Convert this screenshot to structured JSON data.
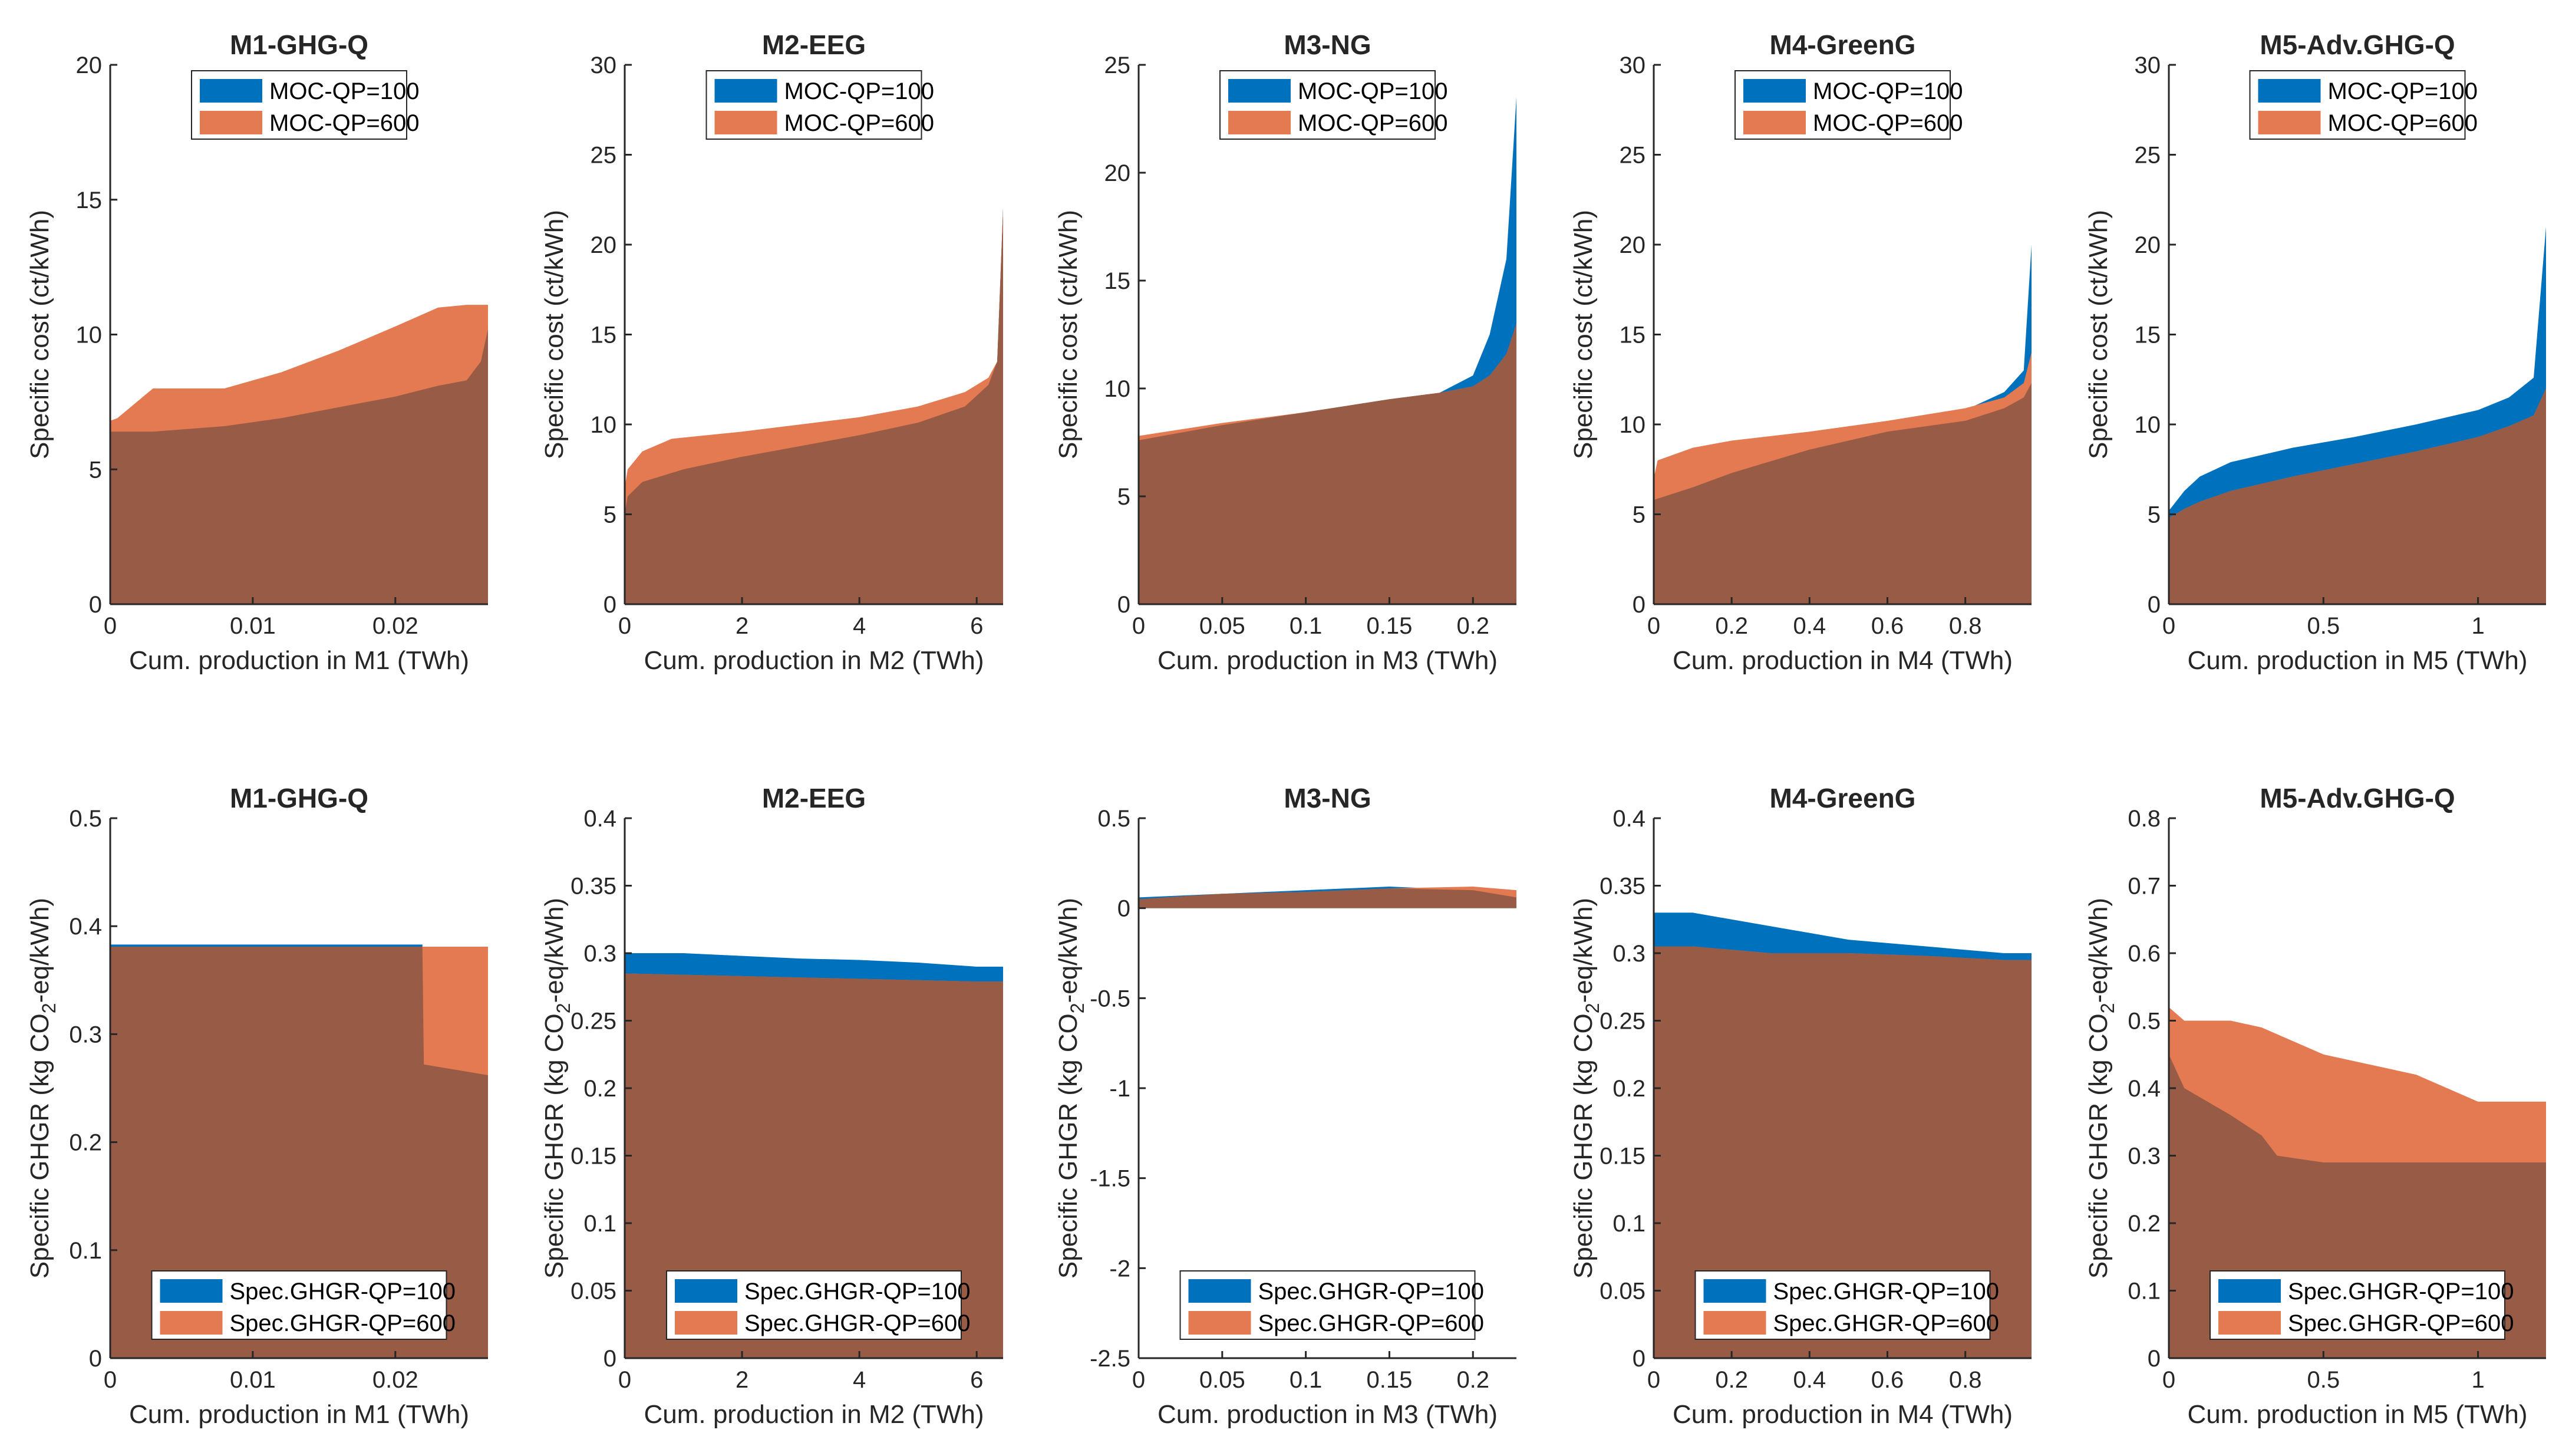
{
  "colors": {
    "blue": "#0072BD",
    "orange": "#E47A52",
    "overlap": "#985B45",
    "axis": "#262626"
  },
  "chart_data": [
    {
      "type": "area",
      "row": "cost",
      "title": "M1-GHG-Q",
      "xlabel": "Cum. production in M1 (TWh)",
      "ylabel": "Specific cost (ct/kWh)",
      "xlim": [
        0,
        0.0265
      ],
      "ylim": [
        0,
        20
      ],
      "xticks": [
        0,
        0.01,
        0.02
      ],
      "xticklabels": [
        "0",
        "0.01",
        "0.02"
      ],
      "yticks": [
        0,
        5,
        10,
        15,
        20
      ],
      "yticklabels": [
        "0",
        "5",
        "10",
        "15",
        "20"
      ],
      "legend": {
        "position": "top",
        "entries": [
          "MOC-QP=100",
          "MOC-QP=600"
        ]
      },
      "series": [
        {
          "name": "MOC-QP=100",
          "x": [
            0,
            0.0005,
            0.003,
            0.008,
            0.012,
            0.016,
            0.02,
            0.023,
            0.025,
            0.026,
            0.0265
          ],
          "y": [
            6.4,
            6.4,
            6.4,
            6.6,
            6.9,
            7.3,
            7.7,
            8.1,
            8.3,
            9,
            10.2
          ]
        },
        {
          "name": "MOC-QP=600",
          "x": [
            0,
            0.0005,
            0.003,
            0.008,
            0.012,
            0.016,
            0.02,
            0.023,
            0.025,
            0.026,
            0.0265
          ],
          "y": [
            6.8,
            6.9,
            8,
            8,
            8.6,
            9.4,
            10.3,
            11,
            11.1,
            11.1,
            11.1
          ]
        }
      ]
    },
    {
      "type": "area",
      "row": "cost",
      "title": "M2-EEG",
      "xlabel": "Cum. production in M2 (TWh)",
      "ylabel": "Specific cost (ct/kWh)",
      "xlim": [
        0,
        6.45
      ],
      "ylim": [
        0,
        30
      ],
      "xticks": [
        0,
        2,
        4,
        6
      ],
      "xticklabels": [
        "0",
        "2",
        "4",
        "6"
      ],
      "yticks": [
        0,
        5,
        10,
        15,
        20,
        25,
        30
      ],
      "yticklabels": [
        "0",
        "5",
        "10",
        "15",
        "20",
        "25",
        "30"
      ],
      "legend": {
        "position": "top",
        "entries": [
          "MOC-QP=100",
          "MOC-QP=600"
        ]
      },
      "series": [
        {
          "name": "MOC-QP=100",
          "x": [
            0,
            0.05,
            0.3,
            1,
            2,
            3,
            4,
            5,
            5.8,
            6.2,
            6.35,
            6.45
          ],
          "y": [
            5,
            6,
            6.8,
            7.5,
            8.2,
            8.8,
            9.4,
            10.1,
            11,
            12.2,
            13.5,
            22
          ]
        },
        {
          "name": "MOC-QP=600",
          "x": [
            0,
            0.05,
            0.3,
            0.8,
            2,
            3,
            4,
            5,
            5.8,
            6.2,
            6.35,
            6.45
          ],
          "y": [
            6.5,
            7.5,
            8.5,
            9.2,
            9.6,
            10,
            10.4,
            11,
            11.8,
            12.6,
            13.5,
            22
          ]
        }
      ]
    },
    {
      "type": "area",
      "row": "cost",
      "title": "M3-NG",
      "xlabel": "Cum. production in M3 (TWh)",
      "ylabel": "Specific cost (ct/kWh)",
      "xlim": [
        0,
        0.226
      ],
      "ylim": [
        0,
        25
      ],
      "xticks": [
        0,
        0.05,
        0.1,
        0.15,
        0.2
      ],
      "xticklabels": [
        "0",
        "0.05",
        "0.1",
        "0.15",
        "0.2"
      ],
      "yticks": [
        0,
        5,
        10,
        15,
        20,
        25
      ],
      "yticklabels": [
        "0",
        "5",
        "10",
        "15",
        "20",
        "25"
      ],
      "legend": {
        "position": "top",
        "entries": [
          "MOC-QP=100",
          "MOC-QP=600"
        ]
      },
      "series": [
        {
          "name": "MOC-QP=100",
          "x": [
            0,
            0.05,
            0.1,
            0.15,
            0.18,
            0.2,
            0.21,
            0.22,
            0.226
          ],
          "y": [
            7.6,
            8.3,
            8.9,
            9.5,
            9.8,
            10.6,
            12.5,
            16,
            23.5
          ]
        },
        {
          "name": "MOC-QP=600",
          "x": [
            0,
            0.05,
            0.1,
            0.15,
            0.18,
            0.2,
            0.21,
            0.22,
            0.226
          ],
          "y": [
            7.8,
            8.4,
            8.9,
            9.5,
            9.8,
            10.1,
            10.6,
            11.6,
            13
          ]
        }
      ]
    },
    {
      "type": "area",
      "row": "cost",
      "title": "M4-GreenG",
      "xlabel": "Cum. production in M4 (TWh)",
      "ylabel": "Specific cost (ct/kWh)",
      "xlim": [
        0,
        0.97
      ],
      "ylim": [
        0,
        30
      ],
      "xticks": [
        0,
        0.2,
        0.4,
        0.6,
        0.8
      ],
      "xticklabels": [
        "0",
        "0.2",
        "0.4",
        "0.6",
        "0.8"
      ],
      "yticks": [
        0,
        5,
        10,
        15,
        20,
        25,
        30
      ],
      "yticklabels": [
        "0",
        "5",
        "10",
        "15",
        "20",
        "25",
        "30"
      ],
      "legend": {
        "position": "top",
        "entries": [
          "MOC-QP=100",
          "MOC-QP=600"
        ]
      },
      "series": [
        {
          "name": "MOC-QP=100",
          "x": [
            0,
            0.1,
            0.2,
            0.4,
            0.6,
            0.8,
            0.9,
            0.95,
            0.97
          ],
          "y": [
            5.8,
            6.5,
            7.3,
            8.6,
            9.7,
            10.8,
            11.8,
            13,
            20
          ]
        },
        {
          "name": "MOC-QP=600",
          "x": [
            0,
            0.01,
            0.1,
            0.2,
            0.4,
            0.6,
            0.8,
            0.9,
            0.95,
            0.97
          ],
          "y": [
            7,
            8,
            8.7,
            9.1,
            9.6,
            10.2,
            10.9,
            11.5,
            12.3,
            14
          ]
        }
      ]
    },
    {
      "type": "area",
      "row": "cost",
      "title": "M5-Adv.GHG-Q",
      "xlabel": "Cum. production in M5 (TWh)",
      "ylabel": "Specific cost (ct/kWh)",
      "xlim": [
        0,
        1.22
      ],
      "ylim": [
        0,
        30
      ],
      "xticks": [
        0,
        0.5,
        1
      ],
      "xticklabels": [
        "0",
        "0.5",
        "1"
      ],
      "yticks": [
        0,
        5,
        10,
        15,
        20,
        25,
        30
      ],
      "yticklabels": [
        "0",
        "5",
        "10",
        "15",
        "20",
        "25",
        "30"
      ],
      "legend": {
        "position": "top",
        "entries": [
          "MOC-QP=100",
          "MOC-QP=600"
        ]
      },
      "series": [
        {
          "name": "MOC-QP=100",
          "x": [
            0,
            0.05,
            0.1,
            0.2,
            0.4,
            0.6,
            0.8,
            1,
            1.1,
            1.18,
            1.22
          ],
          "y": [
            5.2,
            6.3,
            7.1,
            7.9,
            8.7,
            9.3,
            10,
            10.8,
            11.5,
            12.6,
            21
          ]
        },
        {
          "name": "MOC-QP=600",
          "x": [
            0,
            0.05,
            0.1,
            0.2,
            0.4,
            0.6,
            0.8,
            1,
            1.1,
            1.18,
            1.22
          ],
          "y": [
            4.8,
            5.3,
            5.7,
            6.3,
            7.1,
            7.8,
            8.5,
            9.3,
            9.9,
            10.5,
            12
          ]
        }
      ]
    },
    {
      "type": "area",
      "row": "ghg",
      "title": "M1-GHG-Q",
      "xlabel": "Cum. production in M1 (TWh)",
      "ylabel": "Specific GHGR (kg CO2-eq/kWh)",
      "xlim": [
        0,
        0.0265
      ],
      "ylim": [
        0,
        0.5
      ],
      "xticks": [
        0,
        0.01,
        0.02
      ],
      "xticklabels": [
        "0",
        "0.01",
        "0.02"
      ],
      "yticks": [
        0,
        0.1,
        0.2,
        0.3,
        0.4,
        0.5
      ],
      "yticklabels": [
        "0",
        "0.1",
        "0.2",
        "0.3",
        "0.4",
        "0.5"
      ],
      "legend": {
        "position": "bottom",
        "entries": [
          "Spec.GHGR-QP=100",
          "Spec.GHGR-QP=600"
        ]
      },
      "series": [
        {
          "name": "Spec.GHGR-QP=100",
          "x": [
            0,
            0.02,
            0.0219,
            0.022,
            0.0265
          ],
          "y": [
            0.383,
            0.383,
            0.383,
            0.272,
            0.262
          ]
        },
        {
          "name": "Spec.GHGR-QP=600",
          "x": [
            0,
            0.02,
            0.0219,
            0.022,
            0.0265
          ],
          "y": [
            0.381,
            0.381,
            0.381,
            0.381,
            0.381
          ]
        }
      ]
    },
    {
      "type": "area",
      "row": "ghg",
      "title": "M2-EEG",
      "xlabel": "Cum. production in M2 (TWh)",
      "ylabel": "Specific GHGR (kg CO2-eq/kWh)",
      "xlim": [
        0,
        6.45
      ],
      "ylim": [
        0,
        0.4
      ],
      "xticks": [
        0,
        2,
        4,
        6
      ],
      "xticklabels": [
        "0",
        "2",
        "4",
        "6"
      ],
      "yticks": [
        0,
        0.05,
        0.1,
        0.15,
        0.2,
        0.25,
        0.3,
        0.35,
        0.4
      ],
      "yticklabels": [
        "0",
        "0.05",
        "0.1",
        "0.15",
        "0.2",
        "0.25",
        "0.3",
        "0.35",
        "0.4"
      ],
      "legend": {
        "position": "bottom",
        "entries": [
          "Spec.GHGR-QP=100",
          "Spec.GHGR-QP=600"
        ]
      },
      "series": [
        {
          "name": "Spec.GHGR-QP=100",
          "x": [
            0,
            1,
            2,
            3,
            4,
            5,
            6,
            6.45
          ],
          "y": [
            0.3,
            0.3,
            0.298,
            0.296,
            0.295,
            0.293,
            0.29,
            0.29
          ]
        },
        {
          "name": "Spec.GHGR-QP=600",
          "x": [
            0,
            1,
            2,
            3,
            4,
            5,
            6,
            6.45
          ],
          "y": [
            0.285,
            0.284,
            0.283,
            0.282,
            0.281,
            0.28,
            0.279,
            0.279
          ]
        }
      ]
    },
    {
      "type": "area",
      "row": "ghg",
      "title": "M3-NG",
      "xlabel": "Cum. production in M3 (TWh)",
      "ylabel": "Specific GHGR (kg CO2-eq/kWh)",
      "xlim": [
        0,
        0.226
      ],
      "ylim": [
        -2.5,
        0.5
      ],
      "xticks": [
        0,
        0.05,
        0.1,
        0.15,
        0.2
      ],
      "xticklabels": [
        "0",
        "0.05",
        "0.1",
        "0.15",
        "0.2"
      ],
      "yticks": [
        -2.5,
        -2,
        -1.5,
        -1,
        -0.5,
        0,
        0.5
      ],
      "yticklabels": [
        "-2.5",
        "-2",
        "-1.5",
        "-1",
        "-0.5",
        "0",
        "0.5"
      ],
      "legend": {
        "position": "bottom",
        "entries": [
          "Spec.GHGR-QP=100",
          "Spec.GHGR-QP=600"
        ]
      },
      "series": [
        {
          "name": "Spec.GHGR-QP=100",
          "x": [
            0,
            0.05,
            0.1,
            0.15,
            0.2,
            0.226
          ],
          "y": [
            0.06,
            0.08,
            0.1,
            0.12,
            0.1,
            0.06
          ]
        },
        {
          "name": "Spec.GHGR-QP=600",
          "x": [
            0,
            0.05,
            0.1,
            0.15,
            0.2,
            0.226
          ],
          "y": [
            0.05,
            0.08,
            0.09,
            0.11,
            0.12,
            0.1
          ]
        }
      ]
    },
    {
      "type": "area",
      "row": "ghg",
      "title": "M4-GreenG",
      "xlabel": "Cum. production in M4 (TWh)",
      "ylabel": "Specific GHGR (kg CO2-eq/kWh)",
      "xlim": [
        0,
        0.97
      ],
      "ylim": [
        0,
        0.4
      ],
      "xticks": [
        0,
        0.2,
        0.4,
        0.6,
        0.8
      ],
      "xticklabels": [
        "0",
        "0.2",
        "0.4",
        "0.6",
        "0.8"
      ],
      "yticks": [
        0,
        0.05,
        0.1,
        0.15,
        0.2,
        0.25,
        0.3,
        0.35,
        0.4
      ],
      "yticklabels": [
        "0",
        "0.05",
        "0.1",
        "0.15",
        "0.2",
        "0.25",
        "0.3",
        "0.35",
        "0.4"
      ],
      "legend": {
        "position": "bottom",
        "entries": [
          "Spec.GHGR-QP=100",
          "Spec.GHGR-QP=600"
        ]
      },
      "series": [
        {
          "name": "Spec.GHGR-QP=100",
          "x": [
            0,
            0.1,
            0.3,
            0.5,
            0.7,
            0.9,
            0.97
          ],
          "y": [
            0.33,
            0.33,
            0.32,
            0.31,
            0.305,
            0.3,
            0.3
          ]
        },
        {
          "name": "Spec.GHGR-QP=600",
          "x": [
            0,
            0.1,
            0.3,
            0.5,
            0.7,
            0.9,
            0.97
          ],
          "y": [
            0.305,
            0.305,
            0.3,
            0.3,
            0.298,
            0.295,
            0.295
          ]
        }
      ]
    },
    {
      "type": "area",
      "row": "ghg",
      "title": "M5-Adv.GHG-Q",
      "xlabel": "Cum. production in M5 (TWh)",
      "ylabel": "Specific GHGR (kg CO2-eq/kWh)",
      "xlim": [
        0,
        1.22
      ],
      "ylim": [
        0,
        0.8
      ],
      "xticks": [
        0,
        0.5,
        1
      ],
      "xticklabels": [
        "0",
        "0.5",
        "1"
      ],
      "yticks": [
        0,
        0.1,
        0.2,
        0.3,
        0.4,
        0.5,
        0.6,
        0.7,
        0.8
      ],
      "yticklabels": [
        "0",
        "0.1",
        "0.2",
        "0.3",
        "0.4",
        "0.5",
        "0.6",
        "0.7",
        "0.8"
      ],
      "legend": {
        "position": "bottom",
        "entries": [
          "Spec.GHGR-QP=100",
          "Spec.GHGR-QP=600"
        ]
      },
      "series": [
        {
          "name": "Spec.GHGR-QP=100",
          "x": [
            0,
            0.05,
            0.2,
            0.3,
            0.35,
            0.5,
            0.8,
            1,
            1.22
          ],
          "y": [
            0.45,
            0.4,
            0.36,
            0.33,
            0.3,
            0.29,
            0.29,
            0.29,
            0.29
          ]
        },
        {
          "name": "Spec.GHGR-QP=600",
          "x": [
            0,
            0.05,
            0.2,
            0.3,
            0.4,
            0.5,
            0.6,
            0.7,
            0.8,
            0.9,
            1,
            1.22
          ],
          "y": [
            0.52,
            0.5,
            0.5,
            0.49,
            0.47,
            0.45,
            0.44,
            0.43,
            0.42,
            0.4,
            0.38,
            0.38
          ]
        }
      ]
    }
  ]
}
